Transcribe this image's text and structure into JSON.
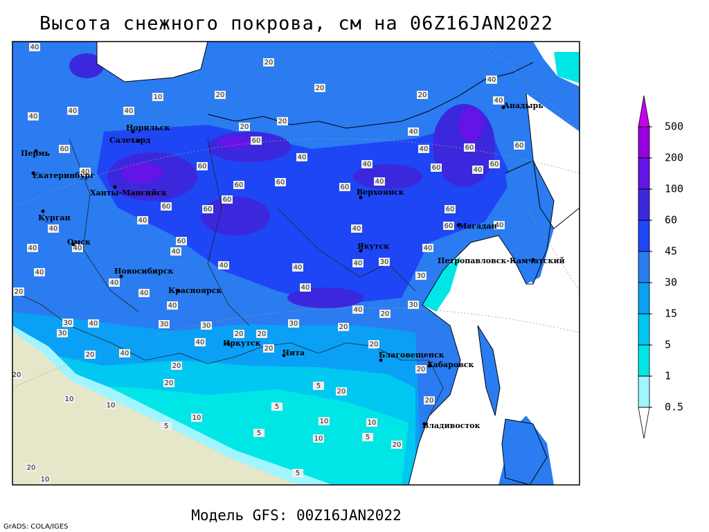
{
  "header": {
    "title": "Высота снежного покрова, см на 06Z16JAN2022"
  },
  "legend": {
    "levels": [
      0.5,
      1,
      5,
      15,
      30,
      45,
      60,
      100,
      200,
      500
    ],
    "colors": [
      "#ffffff",
      "#a0f5ff",
      "#00e6e6",
      "#00c8f0",
      "#0aa0f5",
      "#2a7cf0",
      "#1e46f5",
      "#3c28dc",
      "#6414e6",
      "#9600dc",
      "#c800f0"
    ]
  },
  "map": {
    "cities": [
      "Норильск",
      "Салехард",
      "Пермь",
      "Екатеринбург",
      "Ханты-Мансийск",
      "Курган",
      "Омск",
      "Новосибирск",
      "Красноярск",
      "Иркутск",
      "Чита",
      "Верхоянск",
      "Якутск",
      "Магадан",
      "Анадырь",
      "Петропавловск-Камчатский",
      "Благовещенск",
      "Хабаровск",
      "Владивосток"
    ],
    "contour_labels": [
      40,
      20,
      20,
      20,
      10,
      20,
      40,
      40,
      40,
      20,
      20,
      40,
      40,
      40,
      60,
      60,
      40,
      60,
      60,
      40,
      60,
      40,
      40,
      60,
      40,
      60,
      60,
      60,
      60,
      40,
      60,
      60,
      60,
      60,
      40,
      40,
      40,
      60,
      40,
      60,
      40,
      40,
      40,
      30,
      40,
      40,
      40,
      40,
      30,
      40,
      40,
      40,
      20,
      40,
      40,
      40,
      20,
      30,
      30,
      40,
      30,
      30,
      30,
      20,
      30,
      20,
      20,
      20,
      20,
      20,
      40,
      40,
      20,
      20,
      20,
      20,
      5,
      10,
      20,
      20,
      5,
      10,
      10,
      10,
      10,
      5,
      5,
      10,
      20,
      5,
      20,
      5,
      10
    ]
  },
  "footer": {
    "model": "Модель GFS: 00Z16JAN2022",
    "credit": "GrADS: COLA/IGES"
  }
}
